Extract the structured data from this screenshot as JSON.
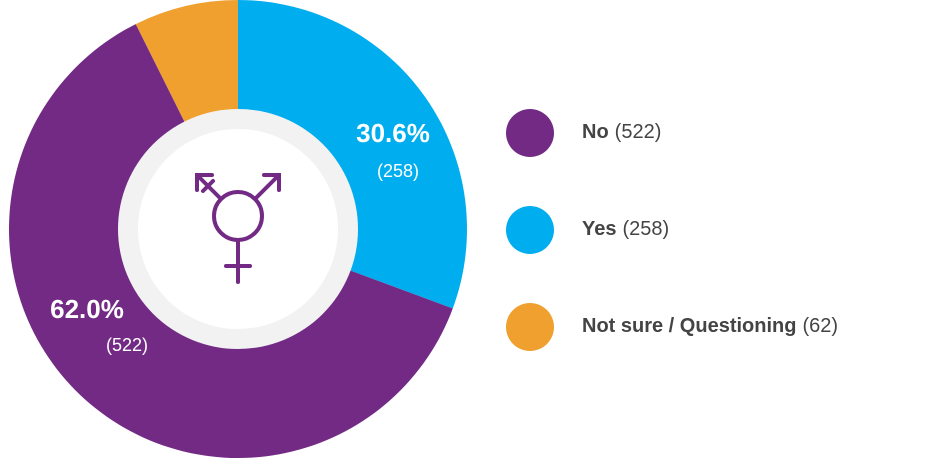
{
  "chart_data": {
    "type": "donut",
    "categories": [
      "No",
      "Yes",
      "Not sure / Questioning"
    ],
    "values": [
      522,
      258,
      62
    ],
    "value_labels": [
      "(522)",
      "(258)",
      "(62)"
    ],
    "percent_labels": [
      "62.0%",
      "30.6%",
      null
    ],
    "colors": [
      "#722a85",
      "#00aeef",
      "#efa02e"
    ]
  }
}
